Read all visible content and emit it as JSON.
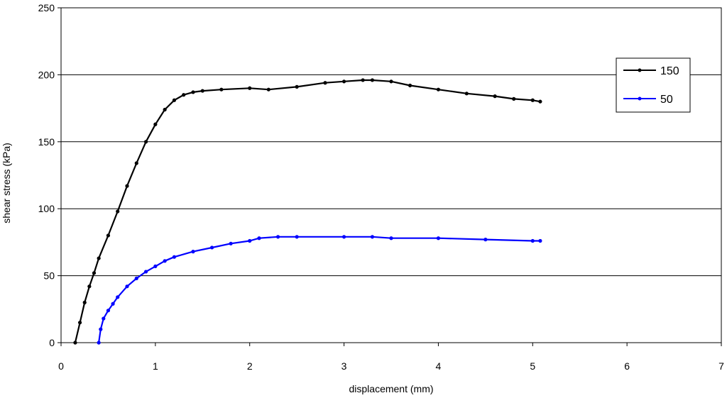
{
  "chart_data": {
    "type": "line",
    "xlabel": "displacement (mm)",
    "ylabel": "shear stress (kPa)",
    "xlim": [
      0,
      7
    ],
    "ylim": [
      0,
      250
    ],
    "x_ticks": [
      "0",
      "1",
      "2",
      "3",
      "4",
      "5",
      "6",
      "7"
    ],
    "y_ticks": [
      "0",
      "50",
      "100",
      "150",
      "200",
      "250"
    ],
    "grid": "horizontal",
    "legend_position": "top-right",
    "series": [
      {
        "name": "150",
        "color": "#000000",
        "x": [
          0.15,
          0.2,
          0.25,
          0.3,
          0.35,
          0.4,
          0.5,
          0.6,
          0.7,
          0.8,
          0.9,
          1.0,
          1.1,
          1.2,
          1.3,
          1.4,
          1.5,
          1.7,
          2.0,
          2.2,
          2.5,
          2.8,
          3.0,
          3.2,
          3.3,
          3.5,
          3.7,
          4.0,
          4.3,
          4.6,
          4.8,
          5.0,
          5.08
        ],
        "y": [
          0,
          15,
          30,
          42,
          52,
          63,
          80,
          98,
          117,
          134,
          150,
          163,
          174,
          181,
          185,
          187,
          188,
          189,
          190,
          189,
          191,
          194,
          195,
          196,
          196,
          195,
          192,
          189,
          186,
          184,
          182,
          181,
          180
        ]
      },
      {
        "name": "50",
        "color": "#0000ff",
        "x": [
          0.4,
          0.42,
          0.45,
          0.5,
          0.55,
          0.6,
          0.7,
          0.8,
          0.9,
          1.0,
          1.1,
          1.2,
          1.4,
          1.6,
          1.8,
          2.0,
          2.1,
          2.3,
          2.5,
          3.0,
          3.3,
          3.5,
          4.0,
          4.5,
          5.0,
          5.08
        ],
        "y": [
          0,
          10,
          18,
          24,
          29,
          34,
          42,
          48,
          53,
          57,
          61,
          64,
          68,
          71,
          74,
          76,
          78,
          79,
          79,
          79,
          79,
          78,
          78,
          77,
          76,
          76
        ]
      }
    ]
  }
}
